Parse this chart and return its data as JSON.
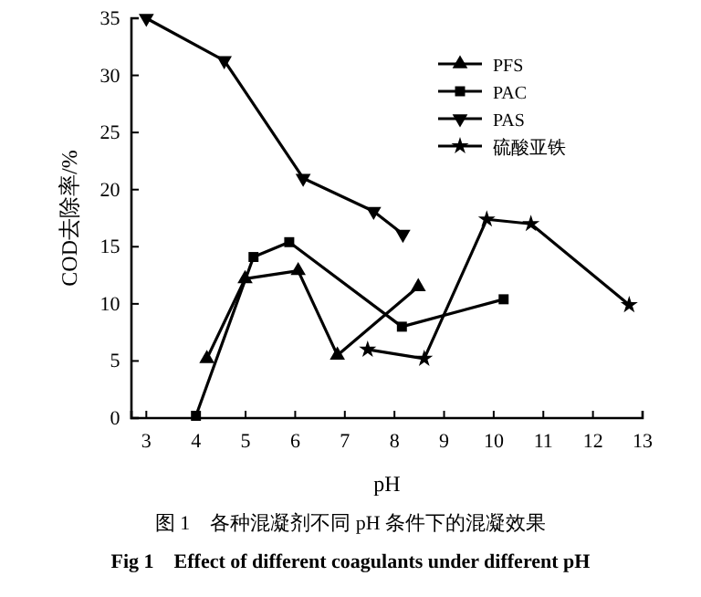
{
  "chart_data": {
    "type": "line",
    "xlabel": "pH",
    "ylabel": "COD去除率/%",
    "xlim": [
      2.7,
      13
    ],
    "xticks": [
      3,
      4,
      5,
      6,
      7,
      8,
      9,
      10,
      11,
      12,
      13
    ],
    "ylim": [
      0,
      35
    ],
    "yticks": [
      0,
      5,
      10,
      15,
      20,
      25,
      30,
      35
    ],
    "grid": false,
    "legend": "top right",
    "line_style": "solid",
    "series": [
      {
        "name": "PFS",
        "color": "#000000",
        "marker": "triangle",
        "x": [
          4.22,
          4.99,
          6.06,
          6.85,
          8.48
        ],
        "values": [
          5.2,
          12.2,
          12.9,
          5.5,
          11.5
        ]
      },
      {
        "name": "PAC",
        "color": "#000000",
        "marker": "square",
        "x": [
          4.0,
          5.16,
          5.88,
          8.15,
          10.2
        ],
        "values": [
          0.2,
          14.1,
          15.4,
          8.0,
          10.4
        ]
      },
      {
        "name": "PAS",
        "color": "#000000",
        "marker": "triangle-down",
        "x": [
          3,
          4.57,
          6.16,
          7.58,
          8.17
        ],
        "values": [
          35,
          31.3,
          21.0,
          18.1,
          16.1
        ]
      },
      {
        "name": "硫酸亚铁",
        "color": "#000000",
        "marker": "star",
        "x": [
          7.46,
          8.6,
          9.86,
          10.75,
          12.73
        ],
        "values": [
          6.0,
          5.2,
          17.4,
          17.0,
          9.9
        ]
      }
    ],
    "annotations": [
      "图 1　各种混凝剂不同 pH 条件下的混凝效果",
      "Fig 1　Effect of different coagulants under different pH"
    ]
  }
}
